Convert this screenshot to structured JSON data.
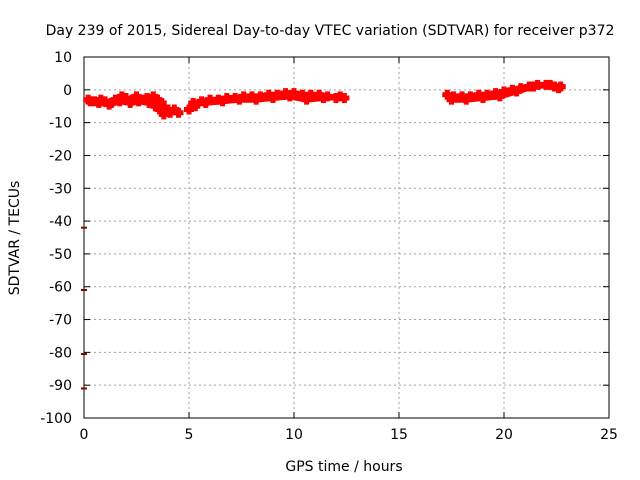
{
  "chart_data": {
    "type": "scatter",
    "title": "Day 239 of 2015, Sidereal Day-to-day VTEC variation (SDTVAR) for receiver p372",
    "xlabel": "GPS time / hours",
    "ylabel": "SDTVAR / TECUs",
    "xlim": [
      0,
      25
    ],
    "ylim": [
      -100,
      10
    ],
    "xticks": [
      "0",
      "5",
      "10",
      "15",
      "20",
      "25"
    ],
    "yticks": [
      "10",
      "0",
      "-10",
      "-20",
      "-30",
      "-40",
      "-50",
      "-60",
      "-70",
      "-80",
      "-90",
      "-100"
    ],
    "grid": true,
    "marker_color": "#ff0000",
    "outlier_color": "#8b0000",
    "series": [
      {
        "name": "SDTVAR",
        "x": [
          0.2,
          0.5,
          0.8,
          1.0,
          1.3,
          1.5,
          1.8,
          2.0,
          2.3,
          2.5,
          2.8,
          3.0,
          3.3,
          3.5,
          3.7,
          3.9,
          4.1,
          4.3,
          4.5,
          0.3,
          0.7,
          1.2,
          1.7,
          2.2,
          2.6,
          3.1,
          3.4,
          3.6,
          3.8,
          4.0,
          5.0,
          5.3,
          5.6,
          6.0,
          6.4,
          6.8,
          7.2,
          7.6,
          8.0,
          8.4,
          8.8,
          9.2,
          9.6,
          10.0,
          10.4,
          10.8,
          11.2,
          11.6,
          12.0,
          12.4,
          5.2,
          5.8,
          6.6,
          7.4,
          8.2,
          9.0,
          9.8,
          10.6,
          11.4,
          12.2,
          17.3,
          17.6,
          18.0,
          18.4,
          18.8,
          19.2,
          19.6,
          20.0,
          20.4,
          20.8,
          21.2,
          21.6,
          22.0,
          22.4,
          22.7,
          17.5,
          18.2,
          19.0,
          19.8,
          20.6,
          21.4,
          22.2,
          22.6
        ],
        "y": [
          -3,
          -3.5,
          -3,
          -3.5,
          -4,
          -3,
          -2,
          -2.5,
          -3,
          -2,
          -3,
          -2.5,
          -2,
          -3,
          -4,
          -6,
          -7,
          -6,
          -7,
          -3.5,
          -4,
          -4.5,
          -3.5,
          -4,
          -3.5,
          -4,
          -5,
          -6,
          -7.5,
          -6,
          -6,
          -5,
          -3.5,
          -3,
          -3,
          -2.5,
          -2.5,
          -2,
          -2,
          -2,
          -1.5,
          -1.5,
          -1,
          -1,
          -1.5,
          -1.5,
          -1.5,
          -2,
          -2.5,
          -2.5,
          -4,
          -4,
          -3.5,
          -3,
          -3,
          -2.5,
          -2,
          -3,
          -2.5,
          -2,
          -1.5,
          -2,
          -2,
          -2,
          -1.5,
          -1.5,
          -1,
          -0.5,
          0,
          0.5,
          1,
          1.5,
          1.5,
          1,
          1,
          -3,
          -3,
          -2.5,
          -2,
          -0.5,
          1,
          1.5,
          0.5
        ]
      },
      {
        "name": "outliers",
        "x": [
          0,
          0,
          0,
          0
        ],
        "y": [
          -42,
          -61,
          -80.5,
          -91
        ]
      }
    ]
  }
}
